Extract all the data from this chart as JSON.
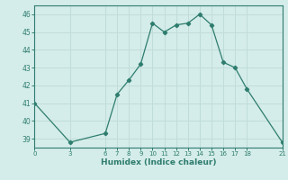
{
  "x": [
    0,
    3,
    6,
    7,
    8,
    9,
    10,
    11,
    12,
    13,
    14,
    15,
    16,
    17,
    18,
    21
  ],
  "y": [
    41.0,
    38.8,
    39.3,
    41.5,
    42.3,
    43.2,
    45.5,
    45.0,
    45.4,
    45.5,
    46.0,
    45.4,
    43.3,
    43.0,
    41.8,
    38.8
  ],
  "line_color": "#2e7d6e",
  "marker": "D",
  "markersize": 2.2,
  "xlabel": "Humidex (Indice chaleur)",
  "xticks": [
    0,
    3,
    6,
    7,
    8,
    9,
    10,
    11,
    12,
    13,
    14,
    15,
    16,
    17,
    18,
    21
  ],
  "yticks": [
    39,
    40,
    41,
    42,
    43,
    44,
    45,
    46
  ],
  "xlim": [
    0,
    21
  ],
  "ylim": [
    38.5,
    46.5
  ],
  "bg_color": "#d4ecea",
  "grid_color": "#c0ddd9"
}
